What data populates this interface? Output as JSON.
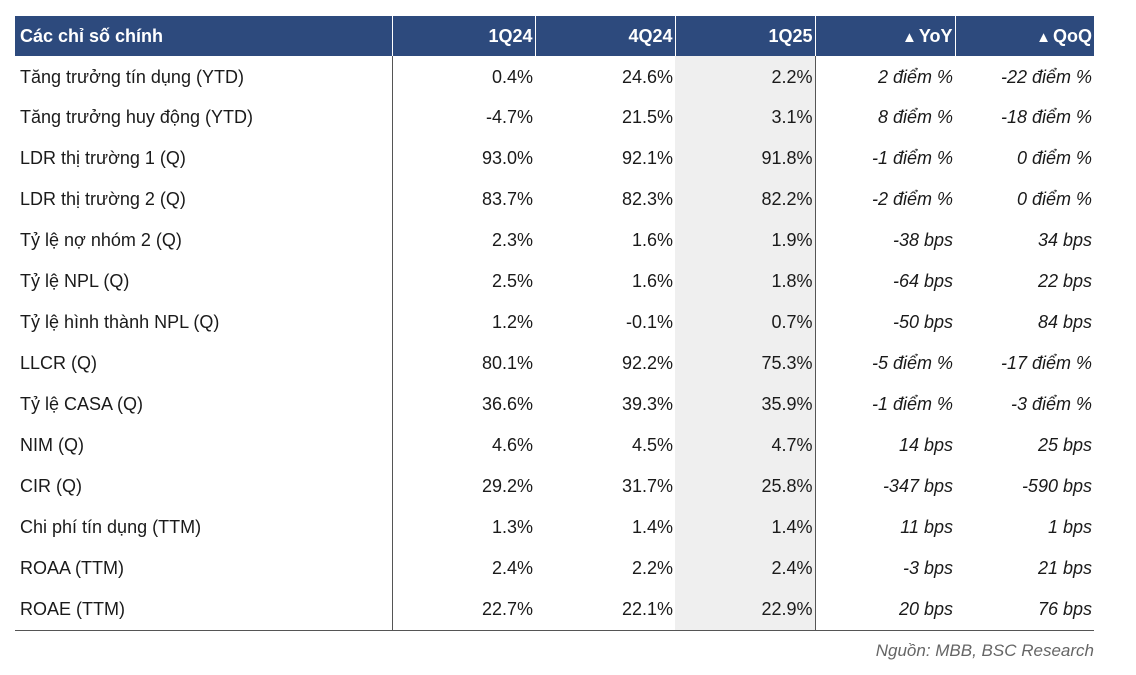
{
  "table": {
    "headers": [
      "Các chỉ số chính",
      "1Q24",
      "4Q24",
      "1Q25",
      "YoY",
      "QoQ"
    ],
    "delta_symbol": "▲",
    "rows": [
      {
        "label": "Tăng trưởng tín dụng (YTD)",
        "q1_24": "0.4%",
        "q4_24": "24.6%",
        "q1_25": "2.2%",
        "yoy": "2 điểm %",
        "qoq": "-22 điểm %"
      },
      {
        "label": "Tăng trưởng huy động (YTD)",
        "q1_24": "-4.7%",
        "q4_24": "21.5%",
        "q1_25": "3.1%",
        "yoy": "8 điểm %",
        "qoq": "-18 điểm %"
      },
      {
        "label": "LDR thị trường 1 (Q)",
        "q1_24": "93.0%",
        "q4_24": "92.1%",
        "q1_25": "91.8%",
        "yoy": "-1 điểm %",
        "qoq": "0 điểm %"
      },
      {
        "label": "LDR thị trường 2 (Q)",
        "q1_24": "83.7%",
        "q4_24": "82.3%",
        "q1_25": "82.2%",
        "yoy": "-2 điểm %",
        "qoq": "0 điểm %"
      },
      {
        "label": "Tỷ lệ nợ nhóm 2 (Q)",
        "q1_24": "2.3%",
        "q4_24": "1.6%",
        "q1_25": "1.9%",
        "yoy": "-38 bps",
        "qoq": "34 bps"
      },
      {
        "label": "Tỷ lệ NPL (Q)",
        "q1_24": "2.5%",
        "q4_24": "1.6%",
        "q1_25": "1.8%",
        "yoy": "-64 bps",
        "qoq": "22 bps"
      },
      {
        "label": "Tỷ lệ hình thành NPL (Q)",
        "q1_24": "1.2%",
        "q4_24": "-0.1%",
        "q1_25": "0.7%",
        "yoy": "-50 bps",
        "qoq": "84 bps"
      },
      {
        "label": "LLCR (Q)",
        "q1_24": "80.1%",
        "q4_24": "92.2%",
        "q1_25": "75.3%",
        "yoy": "-5 điểm %",
        "qoq": "-17 điểm %"
      },
      {
        "label": "Tỷ lệ CASA (Q)",
        "q1_24": "36.6%",
        "q4_24": "39.3%",
        "q1_25": "35.9%",
        "yoy": "-1 điểm %",
        "qoq": "-3 điểm %"
      },
      {
        "label": "NIM (Q)",
        "q1_24": "4.6%",
        "q4_24": "4.5%",
        "q1_25": "4.7%",
        "yoy": "14 bps",
        "qoq": "25 bps"
      },
      {
        "label": "CIR (Q)",
        "q1_24": "29.2%",
        "q4_24": "31.7%",
        "q1_25": "25.8%",
        "yoy": "-347 bps",
        "qoq": "-590 bps"
      },
      {
        "label": "Chi phí tín dụng (TTM)",
        "q1_24": "1.3%",
        "q4_24": "1.4%",
        "q1_25": "1.4%",
        "yoy": "11 bps",
        "qoq": "1 bps"
      },
      {
        "label": "ROAA (TTM)",
        "q1_24": "2.4%",
        "q4_24": "2.2%",
        "q1_25": "2.4%",
        "yoy": "-3 bps",
        "qoq": "21 bps"
      },
      {
        "label": "ROAE (TTM)",
        "q1_24": "22.7%",
        "q4_24": "22.1%",
        "q1_25": "22.9%",
        "yoy": "20 bps",
        "qoq": "76 bps"
      }
    ]
  },
  "source": "Nguồn: MBB, BSC Research",
  "colors": {
    "header_bg": "#2d4a7d",
    "highlight_col": "#efefef"
  }
}
